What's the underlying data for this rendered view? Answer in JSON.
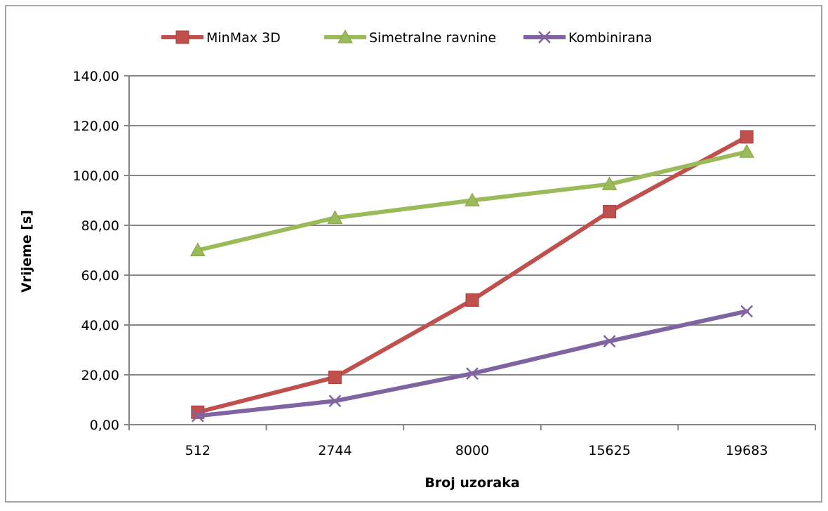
{
  "chart_data": {
    "type": "line",
    "title": "",
    "xlabel": "Broj uzoraka",
    "ylabel": "Vrijeme [s]",
    "categories": [
      "512",
      "2744",
      "8000",
      "15625",
      "19683"
    ],
    "ylim": [
      0,
      140
    ],
    "yticks": [
      0,
      20,
      40,
      60,
      80,
      100,
      120,
      140
    ],
    "ytick_labels": [
      "0,00",
      "20,00",
      "40,00",
      "60,00",
      "80,00",
      "100,00",
      "120,00",
      "140,00"
    ],
    "grid": "horizontal",
    "legend_position": "top",
    "series": [
      {
        "name": "MinMax 3D",
        "color": "#c0504d",
        "marker": "square",
        "values": [
          5.0,
          19.0,
          50.0,
          85.5,
          115.5
        ]
      },
      {
        "name": "Simetralne ravnine",
        "color": "#9bbb59",
        "marker": "triangle",
        "values": [
          70.0,
          83.0,
          90.0,
          96.5,
          109.5
        ]
      },
      {
        "name": "Kombinirana",
        "color": "#8064a2",
        "marker": "x",
        "values": [
          3.5,
          9.5,
          20.5,
          33.5,
          45.5
        ]
      }
    ]
  }
}
